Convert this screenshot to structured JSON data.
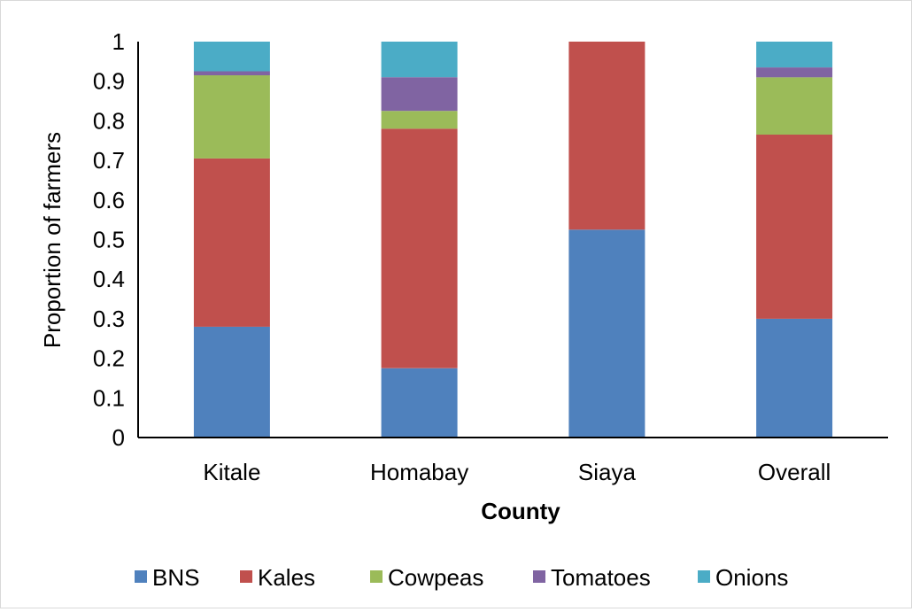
{
  "chart_data": {
    "type": "bar",
    "stacked": true,
    "categories": [
      "Kitale",
      "Homabay",
      "Siaya",
      "Overall"
    ],
    "series": [
      {
        "name": "BNS",
        "color": "#4f81bd",
        "values": [
          0.28,
          0.175,
          0.525,
          0.3
        ]
      },
      {
        "name": "Kales",
        "color": "#c0504d",
        "values": [
          0.425,
          0.605,
          0.475,
          0.465
        ]
      },
      {
        "name": "Cowpeas",
        "color": "#9bbb59",
        "values": [
          0.21,
          0.045,
          0,
          0.145
        ]
      },
      {
        "name": "Tomatoes",
        "color": "#8064a2",
        "values": [
          0.01,
          0.085,
          0,
          0.025
        ]
      },
      {
        "name": "Onions",
        "color": "#4bacc6",
        "values": [
          0.075,
          0.09,
          0,
          0.065
        ]
      }
    ],
    "y_ticks": [
      "0",
      "0.1",
      "0.2",
      "0.3",
      "0.4",
      "0.5",
      "0.6",
      "0.7",
      "0.8",
      "0.9",
      "1"
    ],
    "ylim": [
      0,
      1
    ],
    "xlabel": "County",
    "ylabel": "Proportion of farmers",
    "grid": false,
    "legend_position": "bottom"
  }
}
